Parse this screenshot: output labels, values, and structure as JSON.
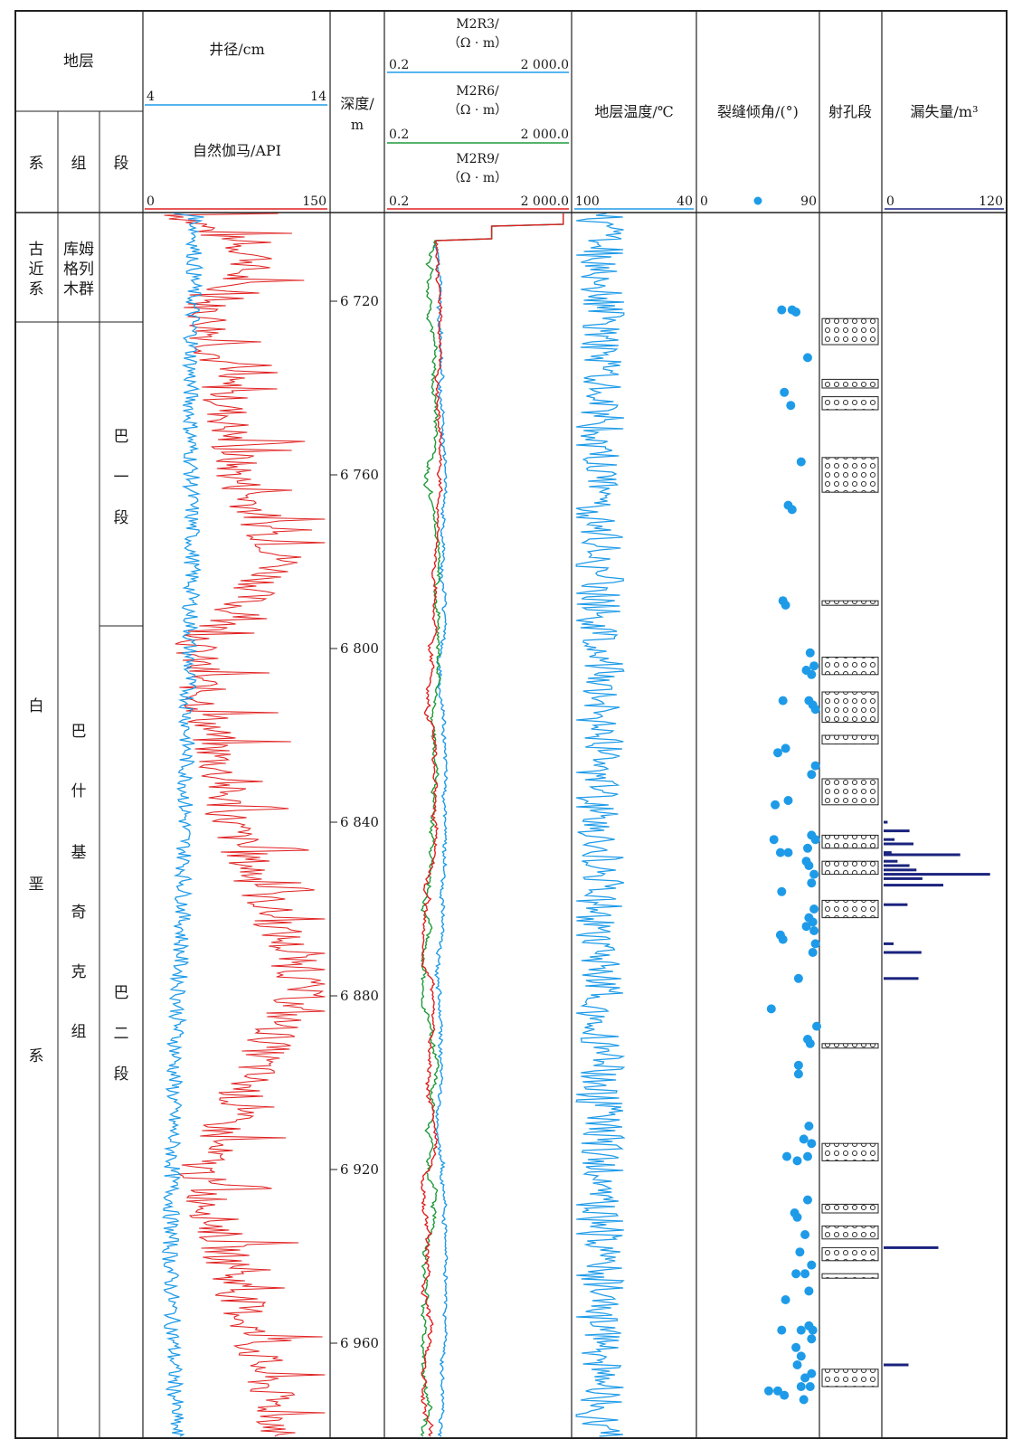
{
  "header": {
    "strata": "地层",
    "xi": "系",
    "zu": "组",
    "duan": "段",
    "caliper_title": "井径/cm",
    "caliper_min": "4",
    "caliper_max": "14",
    "gr_title": "自然伽马/API",
    "gr_min": "0",
    "gr_max": "150",
    "depth_title_1": "深度/",
    "depth_title_2": "m",
    "r3_title_1": "M2R3/",
    "r3_title_2": "（Ω · m）",
    "r6_title_1": "M2R6/",
    "r6_title_2": "（Ω · m）",
    "r9_title_1": "M2R9/",
    "r9_title_2": "（Ω · m）",
    "res_min": "0.2",
    "res_max": "2 000.0",
    "temp_title": "地层温度/℃",
    "temp_min": "100",
    "temp_max": "40",
    "frac_title": "裂缝倾角/(°)",
    "frac_min": "0",
    "frac_max": "90",
    "perf_title": "射孔段",
    "loss_title": "漏失量/m³",
    "loss_min": "0",
    "loss_max": "120"
  },
  "strata": {
    "paleogene_system": [
      "古",
      "近",
      "系"
    ],
    "kumgeliemu_group": [
      "库姆",
      "格列",
      "木群"
    ],
    "cretaceous_system": [
      "白",
      "垩",
      "系"
    ],
    "bashijiqike_group": [
      "巴",
      "什",
      "基",
      "奇",
      "克",
      "组"
    ],
    "ba1_member": [
      "巴",
      "一",
      "段"
    ],
    "ba2_member": [
      "巴",
      "二",
      "段"
    ]
  },
  "depth_ticks": [
    "6 720",
    "6 760",
    "6 800",
    "6 840",
    "6 880",
    "6 920",
    "6 960"
  ],
  "chart_data": {
    "type": "well_log",
    "depth_unit": "m",
    "depth_range": [
      6699,
      6980
    ],
    "fracture_dip_deg": [
      {
        "depth": 6722,
        "dip": 63
      },
      {
        "depth": 6722,
        "dip": 71
      },
      {
        "depth": 6722.5,
        "dip": 74
      },
      {
        "depth": 6733,
        "dip": 83
      },
      {
        "depth": 6741,
        "dip": 65
      },
      {
        "depth": 6744,
        "dip": 70
      },
      {
        "depth": 6757,
        "dip": 78
      },
      {
        "depth": 6768,
        "dip": 71
      },
      {
        "depth": 6767,
        "dip": 68
      },
      {
        "depth": 6790,
        "dip": 66
      },
      {
        "depth": 6789,
        "dip": 64
      },
      {
        "depth": 6801,
        "dip": 85
      },
      {
        "depth": 6804,
        "dip": 88
      },
      {
        "depth": 6805,
        "dip": 82
      },
      {
        "depth": 6806,
        "dip": 86
      },
      {
        "depth": 6812,
        "dip": 64
      },
      {
        "depth": 6812,
        "dip": 84
      },
      {
        "depth": 6813,
        "dip": 87
      },
      {
        "depth": 6814,
        "dip": 89
      },
      {
        "depth": 6824,
        "dip": 60
      },
      {
        "depth": 6823,
        "dip": 66
      },
      {
        "depth": 6827,
        "dip": 89
      },
      {
        "depth": 6829,
        "dip": 86
      },
      {
        "depth": 6835,
        "dip": 68
      },
      {
        "depth": 6836,
        "dip": 58
      },
      {
        "depth": 6843,
        "dip": 86
      },
      {
        "depth": 6844,
        "dip": 89
      },
      {
        "depth": 6844,
        "dip": 57
      },
      {
        "depth": 6846,
        "dip": 83
      },
      {
        "depth": 6847,
        "dip": 62
      },
      {
        "depth": 6847,
        "dip": 68
      },
      {
        "depth": 6849,
        "dip": 82
      },
      {
        "depth": 6850,
        "dip": 84
      },
      {
        "depth": 6852,
        "dip": 88
      },
      {
        "depth": 6854,
        "dip": 86
      },
      {
        "depth": 6856,
        "dip": 63
      },
      {
        "depth": 6860,
        "dip": 88
      },
      {
        "depth": 6862,
        "dip": 84
      },
      {
        "depth": 6863,
        "dip": 87
      },
      {
        "depth": 6864,
        "dip": 82
      },
      {
        "depth": 6865,
        "dip": 88
      },
      {
        "depth": 6866,
        "dip": 62
      },
      {
        "depth": 6867,
        "dip": 64
      },
      {
        "depth": 6868,
        "dip": 89
      },
      {
        "depth": 6870,
        "dip": 87
      },
      {
        "depth": 6876,
        "dip": 76
      },
      {
        "depth": 6883,
        "dip": 55
      },
      {
        "depth": 6887,
        "dip": 90
      },
      {
        "depth": 6890,
        "dip": 83
      },
      {
        "depth": 6891,
        "dip": 85
      },
      {
        "depth": 6896,
        "dip": 76
      },
      {
        "depth": 6898,
        "dip": 76
      },
      {
        "depth": 6910,
        "dip": 84
      },
      {
        "depth": 6913,
        "dip": 80
      },
      {
        "depth": 6914,
        "dip": 86
      },
      {
        "depth": 6917,
        "dip": 83
      },
      {
        "depth": 6917,
        "dip": 67
      },
      {
        "depth": 6918,
        "dip": 75
      },
      {
        "depth": 6927,
        "dip": 83
      },
      {
        "depth": 6930,
        "dip": 73
      },
      {
        "depth": 6931,
        "dip": 75
      },
      {
        "depth": 6935,
        "dip": 81
      },
      {
        "depth": 6939,
        "dip": 77
      },
      {
        "depth": 6942,
        "dip": 86
      },
      {
        "depth": 6944,
        "dip": 81
      },
      {
        "depth": 6944,
        "dip": 74
      },
      {
        "depth": 6948,
        "dip": 84
      },
      {
        "depth": 6950,
        "dip": 66
      },
      {
        "depth": 6956,
        "dip": 84
      },
      {
        "depth": 6957,
        "dip": 87
      },
      {
        "depth": 6957,
        "dip": 78
      },
      {
        "depth": 6957,
        "dip": 63
      },
      {
        "depth": 6959,
        "dip": 86
      },
      {
        "depth": 6961,
        "dip": 74
      },
      {
        "depth": 6963,
        "dip": 78
      },
      {
        "depth": 6965,
        "dip": 75
      },
      {
        "depth": 6967,
        "dip": 86
      },
      {
        "depth": 6968,
        "dip": 81
      },
      {
        "depth": 6970,
        "dip": 78
      },
      {
        "depth": 6970,
        "dip": 85
      },
      {
        "depth": 6971,
        "dip": 53
      },
      {
        "depth": 6971,
        "dip": 60
      },
      {
        "depth": 6972,
        "dip": 65
      },
      {
        "depth": 6973,
        "dip": 80
      }
    ],
    "perforated_intervals_m": [
      [
        6724,
        6730
      ],
      [
        6738,
        6740
      ],
      [
        6742,
        6745
      ],
      [
        6756,
        6764
      ],
      [
        6789,
        6790
      ],
      [
        6802,
        6806
      ],
      [
        6810,
        6817
      ],
      [
        6820,
        6822
      ],
      [
        6830,
        6836
      ],
      [
        6843,
        6846
      ],
      [
        6849,
        6852
      ],
      [
        6858,
        6862
      ],
      [
        6891,
        6892
      ],
      [
        6914,
        6918
      ],
      [
        6928,
        6930
      ],
      [
        6933,
        6936
      ],
      [
        6938,
        6941
      ],
      [
        6944,
        6945
      ],
      [
        6966,
        6970
      ]
    ],
    "loss_m3": [
      {
        "depth": 6840,
        "value": 4
      },
      {
        "depth": 6842,
        "value": 26
      },
      {
        "depth": 6844,
        "value": 11
      },
      {
        "depth": 6845,
        "value": 30
      },
      {
        "depth": 6847,
        "value": 8
      },
      {
        "depth": 6847.5,
        "value": 77
      },
      {
        "depth": 6849,
        "value": 14
      },
      {
        "depth": 6850,
        "value": 26
      },
      {
        "depth": 6851,
        "value": 33
      },
      {
        "depth": 6852,
        "value": 107
      },
      {
        "depth": 6853,
        "value": 39
      },
      {
        "depth": 6854.5,
        "value": 60
      },
      {
        "depth": 6859,
        "value": 24
      },
      {
        "depth": 6868,
        "value": 10
      },
      {
        "depth": 6870,
        "value": 38
      },
      {
        "depth": 6876,
        "value": 35
      },
      {
        "depth": 6938,
        "value": 55
      },
      {
        "depth": 6965,
        "value": 25
      }
    ],
    "gamma_ray_api_trend": [
      {
        "depth": 6700,
        "value": 30
      },
      {
        "depth": 6710,
        "value": 95
      },
      {
        "depth": 6720,
        "value": 50
      },
      {
        "depth": 6740,
        "value": 65
      },
      {
        "depth": 6760,
        "value": 75
      },
      {
        "depth": 6780,
        "value": 115
      },
      {
        "depth": 6800,
        "value": 40
      },
      {
        "depth": 6840,
        "value": 70
      },
      {
        "depth": 6877,
        "value": 130
      },
      {
        "depth": 6920,
        "value": 45
      },
      {
        "depth": 6978,
        "value": 110
      }
    ],
    "caliper_cm_trend": [
      {
        "depth": 6700,
        "value": 6.8
      },
      {
        "depth": 6740,
        "value": 6.5
      },
      {
        "depth": 6780,
        "value": 6.6
      },
      {
        "depth": 6820,
        "value": 6.3
      },
      {
        "depth": 6860,
        "value": 6.1
      },
      {
        "depth": 6900,
        "value": 5.6
      },
      {
        "depth": 6940,
        "value": 5.4
      },
      {
        "depth": 6978,
        "value": 5.7
      }
    ]
  },
  "colors": {
    "gr": "#e02020",
    "caliper": "#1e9be8",
    "r3": "#1e9be8",
    "r6": "#1f9a3a",
    "r9": "#e02020",
    "temperature": "#1e9be8",
    "fracture": "#1e9be8",
    "loss": "#1a237e"
  }
}
